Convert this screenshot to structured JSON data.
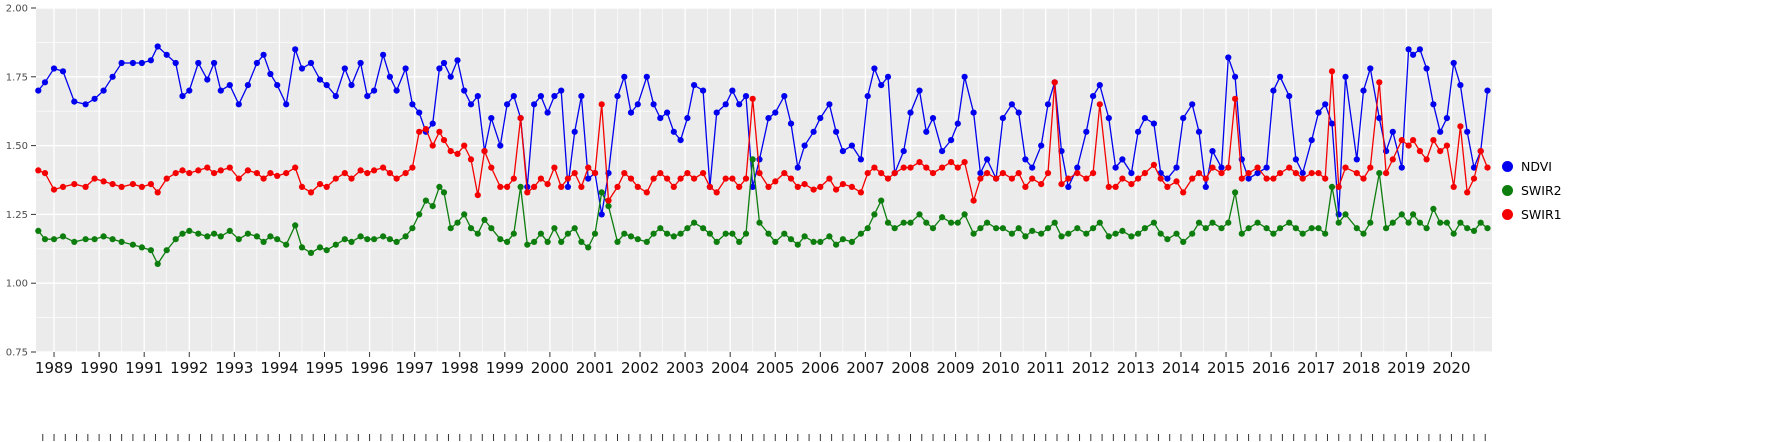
{
  "colors": {
    "panel": "#EBEBEB",
    "grid": "#FFFFFF",
    "tick": "#333333",
    "axis_text": "#4D4D4D"
  },
  "chart_data": {
    "type": "line",
    "title": "",
    "xlabel": "",
    "ylabel": "",
    "grid": true,
    "legend_position": "right",
    "x_domain": [
      1988.6,
      2020.9
    ],
    "y_domain": [
      0.75,
      2.0
    ],
    "x_ticks": [
      1989,
      1990,
      1991,
      1992,
      1993,
      1994,
      1995,
      1996,
      1997,
      1998,
      1999,
      2000,
      2001,
      2002,
      2003,
      2004,
      2005,
      2006,
      2007,
      2008,
      2009,
      2010,
      2011,
      2012,
      2013,
      2014,
      2015,
      2016,
      2017,
      2018,
      2019,
      2020
    ],
    "x_tick_labels": [
      "1989",
      "1990",
      "1991",
      "1992",
      "1993",
      "1994",
      "1995",
      "1996",
      "1997",
      "1998",
      "1999",
      "2000",
      "2001",
      "2002",
      "2003",
      "2004",
      "2005",
      "2006",
      "2007",
      "2008",
      "2009",
      "2010",
      "2011",
      "2012",
      "2013",
      "2014",
      "2015",
      "2016",
      "2017",
      "2018",
      "2019",
      "2020"
    ],
    "y_ticks": [
      2.0,
      1.75,
      1.5,
      1.25,
      1.0,
      0.75
    ],
    "y_tick_labels": [
      "2.00",
      "1.75",
      "1.50",
      "1.25",
      "1.00",
      "0.75"
    ],
    "x": [
      1988.65,
      1988.8,
      1989.0,
      1989.2,
      1989.45,
      1989.7,
      1989.9,
      1990.1,
      1990.3,
      1990.5,
      1990.75,
      1990.95,
      1991.15,
      1991.3,
      1991.5,
      1991.7,
      1991.85,
      1992.0,
      1992.2,
      1992.4,
      1992.55,
      1992.7,
      1992.9,
      1993.1,
      1993.3,
      1993.5,
      1993.65,
      1993.8,
      1993.95,
      1994.15,
      1994.35,
      1994.5,
      1994.7,
      1994.9,
      1995.05,
      1995.25,
      1995.45,
      1995.6,
      1995.8,
      1995.95,
      1996.1,
      1996.3,
      1996.45,
      1996.6,
      1996.8,
      1996.95,
      1997.1,
      1997.25,
      1997.4,
      1997.55,
      1997.65,
      1997.8,
      1997.95,
      1998.1,
      1998.25,
      1998.4,
      1998.55,
      1998.7,
      1998.9,
      1999.05,
      1999.2,
      1999.35,
      1999.5,
      1999.65,
      1999.8,
      1999.95,
      2000.1,
      2000.25,
      2000.4,
      2000.55,
      2000.7,
      2000.85,
      2001.0,
      2001.15,
      2001.3,
      2001.5,
      2001.65,
      2001.8,
      2001.95,
      2002.15,
      2002.3,
      2002.45,
      2002.6,
      2002.75,
      2002.9,
      2003.05,
      2003.2,
      2003.4,
      2003.55,
      2003.7,
      2003.9,
      2004.05,
      2004.2,
      2004.35,
      2004.5,
      2004.65,
      2004.85,
      2005.0,
      2005.2,
      2005.35,
      2005.5,
      2005.65,
      2005.85,
      2006.0,
      2006.2,
      2006.35,
      2006.5,
      2006.7,
      2006.9,
      2007.05,
      2007.2,
      2007.35,
      2007.5,
      2007.65,
      2007.85,
      2008.0,
      2008.2,
      2008.35,
      2008.5,
      2008.7,
      2008.9,
      2009.05,
      2009.2,
      2009.4,
      2009.55,
      2009.7,
      2009.9,
      2010.05,
      2010.25,
      2010.4,
      2010.55,
      2010.7,
      2010.9,
      2011.05,
      2011.2,
      2011.35,
      2011.5,
      2011.7,
      2011.9,
      2012.05,
      2012.2,
      2012.4,
      2012.55,
      2012.7,
      2012.9,
      2013.05,
      2013.2,
      2013.4,
      2013.55,
      2013.7,
      2013.9,
      2014.05,
      2014.25,
      2014.4,
      2014.55,
      2014.7,
      2014.9,
      2015.05,
      2015.2,
      2015.35,
      2015.5,
      2015.7,
      2015.9,
      2016.05,
      2016.2,
      2016.4,
      2016.55,
      2016.7,
      2016.9,
      2017.05,
      2017.2,
      2017.35,
      2017.5,
      2017.65,
      2017.9,
      2018.05,
      2018.2,
      2018.4,
      2018.55,
      2018.7,
      2018.9,
      2019.05,
      2019.15,
      2019.3,
      2019.45,
      2019.6,
      2019.75,
      2019.9,
      2020.05,
      2020.2,
      2020.35,
      2020.5,
      2020.65,
      2020.8
    ],
    "series": [
      {
        "name": "NDVI",
        "color": "#0000EE",
        "values": [
          1.7,
          1.73,
          1.78,
          1.77,
          1.66,
          1.65,
          1.67,
          1.7,
          1.75,
          1.8,
          1.8,
          1.8,
          1.81,
          1.86,
          1.83,
          1.8,
          1.68,
          1.7,
          1.8,
          1.74,
          1.8,
          1.7,
          1.72,
          1.65,
          1.72,
          1.8,
          1.83,
          1.76,
          1.72,
          1.65,
          1.85,
          1.78,
          1.8,
          1.74,
          1.72,
          1.68,
          1.78,
          1.72,
          1.8,
          1.68,
          1.7,
          1.83,
          1.75,
          1.7,
          1.78,
          1.65,
          1.62,
          1.55,
          1.58,
          1.78,
          1.8,
          1.75,
          1.81,
          1.7,
          1.65,
          1.68,
          1.48,
          1.6,
          1.5,
          1.65,
          1.68,
          1.6,
          1.35,
          1.65,
          1.68,
          1.62,
          1.68,
          1.7,
          1.35,
          1.55,
          1.68,
          1.38,
          1.4,
          1.25,
          1.4,
          1.68,
          1.75,
          1.62,
          1.65,
          1.75,
          1.65,
          1.6,
          1.62,
          1.55,
          1.52,
          1.6,
          1.72,
          1.7,
          1.35,
          1.62,
          1.65,
          1.7,
          1.65,
          1.68,
          1.35,
          1.45,
          1.6,
          1.62,
          1.68,
          1.58,
          1.42,
          1.5,
          1.55,
          1.6,
          1.65,
          1.55,
          1.48,
          1.5,
          1.45,
          1.68,
          1.78,
          1.72,
          1.75,
          1.4,
          1.48,
          1.62,
          1.7,
          1.55,
          1.6,
          1.48,
          1.52,
          1.58,
          1.75,
          1.62,
          1.4,
          1.45,
          1.38,
          1.6,
          1.65,
          1.62,
          1.45,
          1.42,
          1.5,
          1.65,
          1.73,
          1.48,
          1.35,
          1.42,
          1.55,
          1.68,
          1.72,
          1.6,
          1.42,
          1.45,
          1.4,
          1.55,
          1.6,
          1.58,
          1.4,
          1.38,
          1.42,
          1.6,
          1.65,
          1.55,
          1.35,
          1.48,
          1.42,
          1.82,
          1.75,
          1.45,
          1.38,
          1.4,
          1.42,
          1.7,
          1.75,
          1.68,
          1.45,
          1.4,
          1.52,
          1.62,
          1.65,
          1.58,
          1.25,
          1.75,
          1.45,
          1.7,
          1.78,
          1.6,
          1.48,
          1.55,
          1.42,
          1.85,
          1.83,
          1.85,
          1.78,
          1.65,
          1.55,
          1.6,
          1.8,
          1.72,
          1.55,
          1.42,
          1.48,
          1.7
        ]
      },
      {
        "name": "SWIR2",
        "color": "#0D7D0D",
        "values": [
          1.19,
          1.16,
          1.16,
          1.17,
          1.15,
          1.16,
          1.16,
          1.17,
          1.16,
          1.15,
          1.14,
          1.13,
          1.12,
          1.07,
          1.12,
          1.16,
          1.18,
          1.19,
          1.18,
          1.17,
          1.18,
          1.17,
          1.19,
          1.16,
          1.18,
          1.17,
          1.15,
          1.17,
          1.16,
          1.14,
          1.21,
          1.13,
          1.11,
          1.13,
          1.12,
          1.14,
          1.16,
          1.15,
          1.17,
          1.16,
          1.16,
          1.17,
          1.16,
          1.15,
          1.17,
          1.2,
          1.25,
          1.3,
          1.28,
          1.35,
          1.33,
          1.2,
          1.22,
          1.25,
          1.2,
          1.18,
          1.23,
          1.2,
          1.16,
          1.15,
          1.18,
          1.35,
          1.14,
          1.15,
          1.18,
          1.15,
          1.2,
          1.15,
          1.18,
          1.2,
          1.15,
          1.13,
          1.18,
          1.33,
          1.28,
          1.15,
          1.18,
          1.17,
          1.16,
          1.15,
          1.18,
          1.2,
          1.18,
          1.17,
          1.18,
          1.2,
          1.22,
          1.2,
          1.18,
          1.15,
          1.18,
          1.18,
          1.15,
          1.18,
          1.45,
          1.22,
          1.18,
          1.15,
          1.18,
          1.16,
          1.14,
          1.17,
          1.15,
          1.15,
          1.17,
          1.14,
          1.16,
          1.15,
          1.18,
          1.2,
          1.25,
          1.3,
          1.22,
          1.2,
          1.22,
          1.22,
          1.25,
          1.22,
          1.2,
          1.24,
          1.22,
          1.22,
          1.25,
          1.18,
          1.2,
          1.22,
          1.2,
          1.2,
          1.18,
          1.2,
          1.17,
          1.19,
          1.18,
          1.2,
          1.22,
          1.17,
          1.18,
          1.2,
          1.18,
          1.2,
          1.22,
          1.17,
          1.18,
          1.19,
          1.17,
          1.18,
          1.2,
          1.22,
          1.18,
          1.16,
          1.18,
          1.15,
          1.18,
          1.22,
          1.2,
          1.22,
          1.2,
          1.22,
          1.33,
          1.18,
          1.2,
          1.22,
          1.2,
          1.18,
          1.2,
          1.22,
          1.2,
          1.18,
          1.2,
          1.2,
          1.18,
          1.35,
          1.22,
          1.25,
          1.2,
          1.18,
          1.22,
          1.4,
          1.2,
          1.22,
          1.25,
          1.22,
          1.25,
          1.22,
          1.2,
          1.27,
          1.22,
          1.22,
          1.18,
          1.22,
          1.2,
          1.19,
          1.22,
          1.2
        ]
      },
      {
        "name": "SWIR1",
        "color": "#F50000",
        "values": [
          1.41,
          1.4,
          1.34,
          1.35,
          1.36,
          1.35,
          1.38,
          1.37,
          1.36,
          1.35,
          1.36,
          1.35,
          1.36,
          1.33,
          1.38,
          1.4,
          1.41,
          1.4,
          1.41,
          1.42,
          1.4,
          1.41,
          1.42,
          1.38,
          1.41,
          1.4,
          1.38,
          1.4,
          1.39,
          1.4,
          1.42,
          1.35,
          1.33,
          1.36,
          1.35,
          1.38,
          1.4,
          1.38,
          1.41,
          1.4,
          1.41,
          1.42,
          1.4,
          1.38,
          1.4,
          1.42,
          1.55,
          1.56,
          1.5,
          1.55,
          1.52,
          1.48,
          1.47,
          1.5,
          1.45,
          1.32,
          1.48,
          1.42,
          1.35,
          1.35,
          1.38,
          1.6,
          1.33,
          1.35,
          1.38,
          1.36,
          1.42,
          1.35,
          1.38,
          1.4,
          1.35,
          1.42,
          1.4,
          1.65,
          1.3,
          1.35,
          1.4,
          1.38,
          1.35,
          1.33,
          1.38,
          1.4,
          1.38,
          1.35,
          1.38,
          1.4,
          1.38,
          1.4,
          1.35,
          1.33,
          1.38,
          1.38,
          1.35,
          1.38,
          1.67,
          1.4,
          1.35,
          1.37,
          1.4,
          1.38,
          1.35,
          1.36,
          1.34,
          1.35,
          1.38,
          1.34,
          1.36,
          1.35,
          1.33,
          1.4,
          1.42,
          1.4,
          1.38,
          1.4,
          1.42,
          1.42,
          1.44,
          1.42,
          1.4,
          1.42,
          1.44,
          1.42,
          1.44,
          1.3,
          1.38,
          1.4,
          1.38,
          1.4,
          1.38,
          1.4,
          1.35,
          1.38,
          1.36,
          1.4,
          1.73,
          1.36,
          1.38,
          1.4,
          1.38,
          1.4,
          1.65,
          1.35,
          1.35,
          1.38,
          1.36,
          1.38,
          1.4,
          1.43,
          1.38,
          1.35,
          1.37,
          1.33,
          1.38,
          1.4,
          1.38,
          1.42,
          1.4,
          1.42,
          1.67,
          1.38,
          1.4,
          1.42,
          1.38,
          1.38,
          1.4,
          1.42,
          1.4,
          1.38,
          1.4,
          1.4,
          1.38,
          1.77,
          1.35,
          1.42,
          1.4,
          1.38,
          1.42,
          1.73,
          1.4,
          1.45,
          1.52,
          1.5,
          1.52,
          1.48,
          1.45,
          1.52,
          1.48,
          1.5,
          1.35,
          1.57,
          1.33,
          1.38,
          1.48,
          1.42
        ]
      }
    ]
  }
}
